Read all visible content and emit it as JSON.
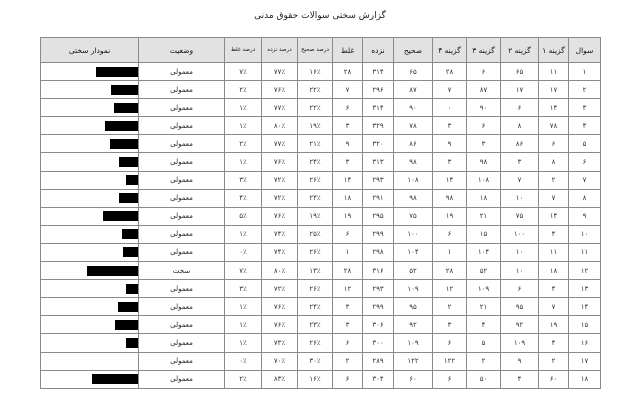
{
  "title": "گزارش سختی سوالات حقوق مدنی",
  "headers": {
    "question": "سوال",
    "option1": "گزینه ۱",
    "option2": "گزینه ۲",
    "option3": "گزینه ۳",
    "option4": "گزینه ۴",
    "correct": "صحیح",
    "unanswered": "نزده",
    "wrong": "غلط",
    "pct_correct": "درصد صحیح",
    "pct_unanswered": "درصد نزده",
    "pct_wrong": "درصد غلط",
    "status": "وضعیت",
    "chart": "نمودار سختی"
  },
  "bar_color": "#000000",
  "rows": [
    {
      "q": "۱",
      "o1": "۱۱",
      "o2": "۶۵",
      "o3": "۶",
      "o4": "۲۸",
      "c": "۶۵",
      "u": "۳۱۴",
      "w": "۲۸",
      "pc": "۱۶٪",
      "pu": "۷۷٪",
      "pw": "۷٪",
      "status": "معمولی",
      "difficulty": 0.43
    },
    {
      "q": "۲",
      "o1": "۱۷",
      "o2": "۱۷",
      "o3": "۸۷",
      "o4": "۷",
      "c": "۸۷",
      "u": "۲۹۶",
      "w": "۷",
      "pc": "۲۲٪",
      "pu": "۷۶٪",
      "pw": "۲٪",
      "status": "معمولی",
      "difficulty": 0.28
    },
    {
      "q": "۳",
      "o1": "۱۴",
      "o2": "۶",
      "o3": "۹۰",
      "o4": "۰",
      "c": "۹۰",
      "u": "۳۱۴",
      "w": "۶",
      "pc": "۲۲٪",
      "pu": "۷۷٪",
      "pw": "۱٪",
      "status": "معمولی",
      "difficulty": 0.25
    },
    {
      "q": "۴",
      "o1": "۷۸",
      "o2": "۸",
      "o3": "۶",
      "o4": "۳",
      "c": "۷۸",
      "u": "۳۲۹",
      "w": "۳",
      "pc": "۱۹٪",
      "pu": "۸۰٪",
      "pw": "۱٪",
      "status": "معمولی",
      "difficulty": 0.34
    },
    {
      "q": "۵",
      "o1": "۶",
      "o2": "۸۶",
      "o3": "۳",
      "o4": "۹",
      "c": "۸۶",
      "u": "۳۲۰",
      "w": "۹",
      "pc": "۲۱٪",
      "pu": "۷۷٪",
      "pw": "۲٪",
      "status": "معمولی",
      "difficulty": 0.29
    },
    {
      "q": "۶",
      "o1": "۸",
      "o2": "۳",
      "o3": "۹۸",
      "o4": "۳",
      "c": "۹۸",
      "u": "۳۱۳",
      "w": "۳",
      "pc": "۲۴٪",
      "pu": "۷۶٪",
      "pw": "۱٪",
      "status": "معمولی",
      "difficulty": 0.2
    },
    {
      "q": "۷",
      "o1": "۲",
      "o2": "۷",
      "o3": "۱۰۸",
      "o4": "۱۴",
      "c": "۱۰۸",
      "u": "۲۹۳",
      "w": "۱۴",
      "pc": "۲۶٪",
      "pu": "۷۲٪",
      "pw": "۳٪",
      "status": "معمولی",
      "difficulty": 0.12
    },
    {
      "q": "۸",
      "o1": "۷",
      "o2": "۱۰",
      "o3": "۱۸",
      "o4": "۹۸",
      "c": "۹۸",
      "u": "۲۹۱",
      "w": "۱۸",
      "pc": "۲۴٪",
      "pu": "۷۲٪",
      "pw": "۴٪",
      "status": "معمولی",
      "difficulty": 0.2
    },
    {
      "q": "۹",
      "o1": "۱۴",
      "o2": "۷۵",
      "o3": "۲۱",
      "o4": "۱۹",
      "c": "۷۵",
      "u": "۲۹۵",
      "w": "۱۹",
      "pc": "۱۹٪",
      "pu": "۷۶٪",
      "pw": "۵٪",
      "status": "معمولی",
      "difficulty": 0.36
    },
    {
      "q": "۱۰",
      "o1": "۴",
      "o2": "۱۰۰",
      "o3": "۱۵",
      "o4": "۶",
      "c": "۱۰۰",
      "u": "۲۹۹",
      "w": "۶",
      "pc": "۲۵٪",
      "pu": "۷۴٪",
      "pw": "۱٪",
      "status": "معمولی",
      "difficulty": 0.17
    },
    {
      "q": "۱۱",
      "o1": "۱۱",
      "o2": "۱۰",
      "o3": "۱۰۴",
      "o4": "۱",
      "c": "۱۰۴",
      "u": "۲۹۸",
      "w": "۱",
      "pc": "۲۶٪",
      "pu": "۷۴٪",
      "pw": "۰٪",
      "status": "معمولی",
      "difficulty": 0.15
    },
    {
      "q": "۱۲",
      "o1": "۱۸",
      "o2": "۱۰",
      "o3": "۵۲",
      "o4": "۲۸",
      "c": "۵۲",
      "u": "۳۱۶",
      "w": "۲۸",
      "pc": "۱۳٪",
      "pu": "۸۰٪",
      "pw": "۷٪",
      "status": "سخت",
      "difficulty": 0.53
    },
    {
      "q": "۱۳",
      "o1": "۴",
      "o2": "۶",
      "o3": "۱۰۹",
      "o4": "۱۲",
      "c": "۱۰۹",
      "u": "۲۹۳",
      "w": "۱۲",
      "pc": "۲۶٪",
      "pu": "۷۲٪",
      "pw": "۳٪",
      "status": "معمولی",
      "difficulty": 0.12
    },
    {
      "q": "۱۴",
      "o1": "۷",
      "o2": "۹۵",
      "o3": "۲۱",
      "o4": "۲",
      "c": "۹۵",
      "u": "۲۹۹",
      "w": "۳",
      "pc": "۲۴٪",
      "pu": "۷۶٪",
      "pw": "۱٪",
      "status": "معمولی",
      "difficulty": 0.21
    },
    {
      "q": "۱۵",
      "o1": "۱۹",
      "o2": "۹۲",
      "o3": "۴",
      "o4": "۳",
      "c": "۹۲",
      "u": "۳۰۶",
      "w": "۳",
      "pc": "۲۳٪",
      "pu": "۷۶٪",
      "pw": "۱٪",
      "status": "معمولی",
      "difficulty": 0.24
    },
    {
      "q": "۱۶",
      "o1": "۴",
      "o2": "۱۰۹",
      "o3": "۵",
      "o4": "۶",
      "c": "۱۰۹",
      "u": "۳۰۰",
      "w": "۶",
      "pc": "۲۶٪",
      "pu": "۷۳٪",
      "pw": "۱٪",
      "status": "معمولی",
      "difficulty": 0.12
    },
    {
      "q": "۱۷",
      "o1": "۲",
      "o2": "۹",
      "o3": "۲",
      "o4": "۱۲۲",
      "c": "۱۲۲",
      "u": "۲۸۹",
      "w": "۲",
      "pc": "۳۰٪",
      "pu": "۷۰٪",
      "pw": "۰٪",
      "status": "معمولی",
      "difficulty": 0
    },
    {
      "q": "۱۸",
      "o1": "۶۰",
      "o2": "۴",
      "o3": "۵۰",
      "o4": "۶",
      "c": "۶۰",
      "u": "۳۰۴",
      "w": "۶",
      "pc": "۱۶٪",
      "pu": "۸۳٪",
      "pw": "۲٪",
      "status": "معمولی",
      "difficulty": 0.47
    }
  ]
}
